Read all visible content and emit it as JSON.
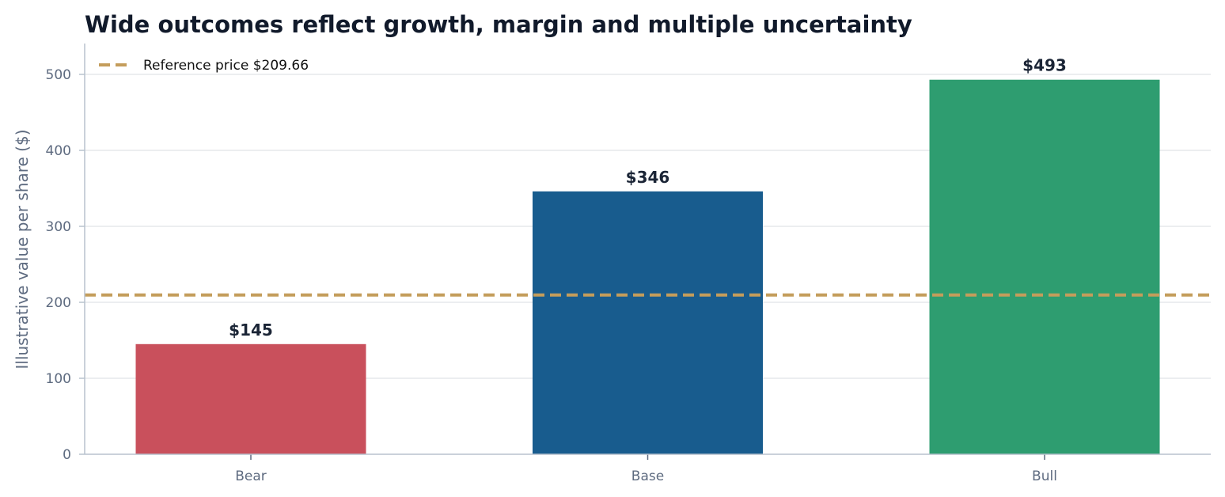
{
  "chart_data": {
    "type": "bar",
    "title": "Wide outcomes reflect growth, margin and multiple uncertainty",
    "xlabel": "",
    "ylabel": "Illustrative value per share ($)",
    "categories": [
      "Bear",
      "Base",
      "Bull"
    ],
    "values": [
      145,
      346,
      493
    ],
    "data_labels": [
      "$145",
      "$346",
      "$493"
    ],
    "bar_colors": [
      "#c9505c",
      "#185c8e",
      "#2e9d70"
    ],
    "ylim": [
      0,
      540
    ],
    "yticks": [
      0,
      100,
      200,
      300,
      400,
      500
    ],
    "grid": true,
    "reference_line": {
      "value": 209.66,
      "label": "Reference price $209.66",
      "color": "#c49d5b",
      "style": "dashed"
    },
    "legend_position": "top-left",
    "colors": {
      "title": "#111a2b",
      "data_label": "#1b2536",
      "tick_label": "#5e6b80",
      "axis": "#b8c2ce",
      "grid": "#e5e8ec",
      "legend_text": "#111111"
    }
  }
}
